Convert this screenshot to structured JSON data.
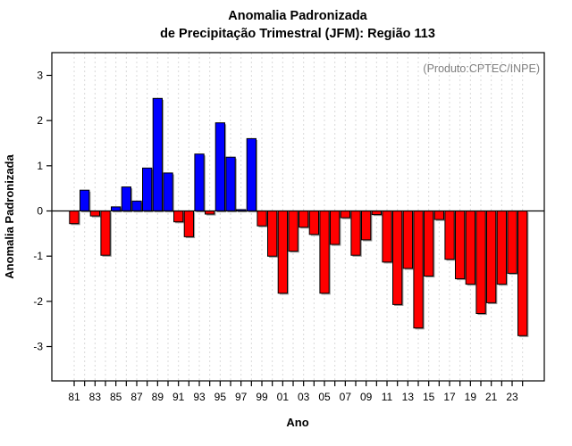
{
  "chart_data": {
    "type": "bar",
    "title_line1": "Anomalia Padronizada",
    "title_line2": "de Precipitação Trimestral (JFM): Região 113",
    "annotation": "(Produto:CPTEC/INPE)",
    "xlabel": "Ano",
    "ylabel": "Anomalia Padronizada",
    "ylim": [
      -3,
      3
    ],
    "yticks": [
      3,
      2,
      1,
      0,
      -1,
      -2,
      -3
    ],
    "xtick_labels": [
      "81",
      "83",
      "85",
      "87",
      "89",
      "91",
      "93",
      "95",
      "97",
      "99",
      "01",
      "03",
      "05",
      "07",
      "09",
      "11",
      "13",
      "15",
      "17",
      "19",
      "21",
      "23"
    ],
    "grid": "vertical-dashed",
    "legend": "none",
    "positive_color": "#0000ff",
    "negative_color": "#ff0000",
    "bar_border_color": "#000000",
    "bar_shadow_color": "#999999",
    "grid_color": "#d9d9d9",
    "annotation_color": "#7f7f7f",
    "years": [
      1981,
      1982,
      1983,
      1984,
      1985,
      1986,
      1987,
      1988,
      1989,
      1990,
      1991,
      1992,
      1993,
      1994,
      1995,
      1996,
      1997,
      1998,
      1999,
      2000,
      2001,
      2002,
      2003,
      2004,
      2005,
      2006,
      2007,
      2008,
      2009,
      2010,
      2011,
      2012,
      2013,
      2014,
      2015,
      2016,
      2017,
      2018,
      2019,
      2020,
      2021,
      2022,
      2023,
      2024
    ],
    "values": [
      -0.28,
      0.46,
      -0.11,
      -0.98,
      0.09,
      0.53,
      0.22,
      0.95,
      2.49,
      0.84,
      -0.24,
      -0.57,
      1.26,
      -0.07,
      1.95,
      1.19,
      0.03,
      1.6,
      -0.33,
      -1.0,
      -1.82,
      -0.89,
      -0.36,
      -0.52,
      -1.82,
      -0.74,
      -0.15,
      -0.98,
      -0.64,
      -0.08,
      -1.13,
      -2.07,
      -1.27,
      -2.59,
      -1.44,
      -0.19,
      -1.07,
      -1.5,
      -1.62,
      -2.27,
      -2.03,
      -1.62,
      -1.38,
      -2.76
    ]
  }
}
